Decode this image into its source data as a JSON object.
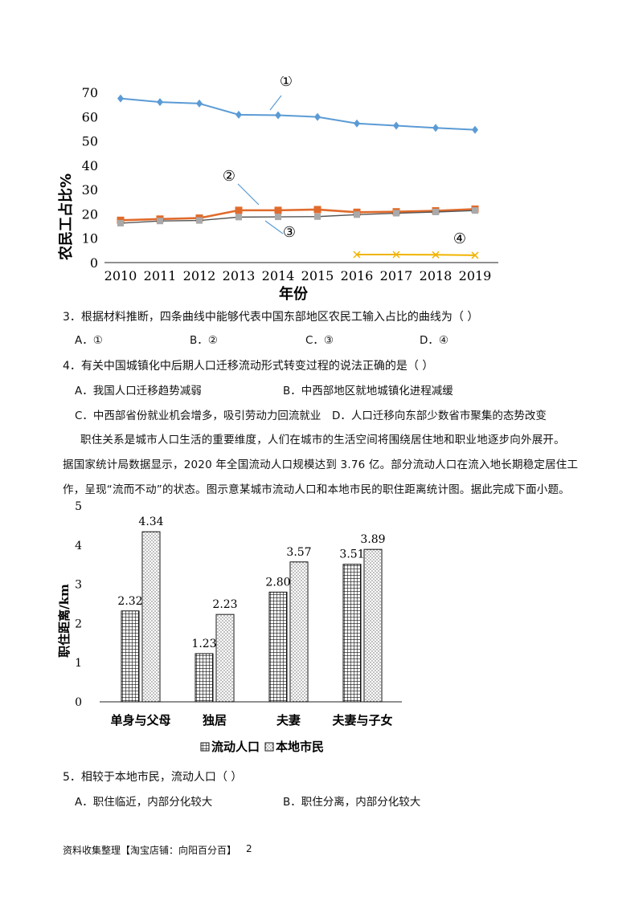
{
  "chart1": {
    "type": "line",
    "ylabel": "农民工占比%",
    "xlabel": "年份",
    "x": [
      2010,
      2011,
      2012,
      2013,
      2014,
      2015,
      2016,
      2017,
      2018,
      2019
    ],
    "yticks": [
      0,
      10,
      20,
      30,
      40,
      50,
      60,
      70
    ],
    "ylim": [
      0,
      70
    ],
    "series": [
      {
        "name": "①",
        "color": "#5b9bd5",
        "marker": "diamond",
        "values": [
          67.5,
          66,
          65.4,
          60.8,
          60.6,
          59.9,
          57.2,
          56.3,
          55.4,
          54.6
        ]
      },
      {
        "name": "②",
        "color": "#e06b2c",
        "marker": "square",
        "values": [
          17.4,
          17.9,
          18.3,
          21.5,
          21.5,
          21.8,
          20.7,
          20.9,
          21.3,
          22.0
        ]
      },
      {
        "name": "③",
        "color": "#555555",
        "marker": "square-gray",
        "values": [
          16.2,
          17.1,
          17.3,
          18.7,
          18.8,
          18.9,
          19.7,
          20.3,
          20.8,
          21.4
        ]
      },
      {
        "name": "④",
        "color": "#f0b400",
        "marker": "x",
        "values": [
          null,
          null,
          null,
          null,
          null,
          null,
          3.3,
          3.3,
          3.2,
          3.0
        ]
      }
    ]
  },
  "questions": {
    "q3": {
      "stem": "3．根据材料推断，四条曲线中能够代表中国东部地区农民工输入占比的曲线为（    ）",
      "options": [
        "A．①",
        "B．②",
        "C．③",
        "D．④"
      ]
    },
    "q4": {
      "stem": "4．有关中国城镇化中后期人口迁移流动形式转变过程的说法正确的是（    ）",
      "options": [
        "A．我国人口迁移趋势减弱",
        "B．中西部地区就地城镇化进程减缓",
        "C．中西部省份就业机会增多，吸引劳动力回流就业",
        "D．人口迁移向东部少数省市聚集的态势改变"
      ]
    },
    "material": [
      "职住关系是城市人口生活的重要维度，人们在城市的生活空间将围绕居住地和职业地逐步向外展开。",
      "据国家统计局数据显示，2020 年全国流动人口规模达到 3.76 亿。部分流动人口在流入地长期稳定居住工",
      "作，呈现“流而不动”的状态。图示意某城市流动人口和本地市民的职住距离统计图。据此完成下面小题。"
    ],
    "q5": {
      "stem": "5．相较于本地市民，流动人口（    ）",
      "options": [
        "A．职住临近，内部分化较大",
        "B．职住分离，内部分化较大"
      ]
    }
  },
  "chart2": {
    "type": "bar",
    "ylabel": "职住距离/km",
    "categories": [
      "单身与父母",
      "独居",
      "夫妻",
      "夫妻与子女"
    ],
    "yticks": [
      0,
      1,
      2,
      3,
      4,
      5
    ],
    "ylim": [
      0,
      5
    ],
    "series": [
      {
        "name": "流动人口",
        "pattern": "grid",
        "values": [
          2.32,
          1.23,
          2.8,
          3.51
        ],
        "labels": [
          "2.32",
          "1.23",
          "2.80",
          "3.51"
        ]
      },
      {
        "name": "本地市民",
        "pattern": "dots",
        "values": [
          4.34,
          2.23,
          3.57,
          3.89
        ],
        "labels": [
          "4.34",
          "2.23",
          "3.57",
          "3.89"
        ]
      }
    ]
  },
  "footer": {
    "text": "资料收集整理【淘宝店铺：向阳百分百】",
    "page": "2"
  }
}
